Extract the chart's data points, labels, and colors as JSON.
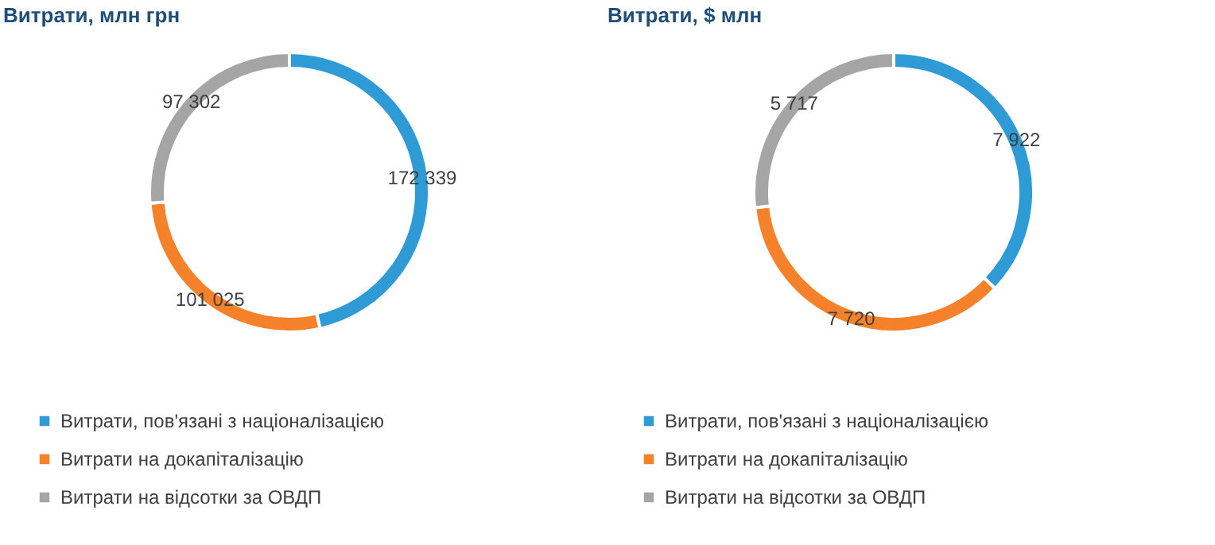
{
  "chart_data": [
    {
      "type": "donut",
      "title": "Витрати, млн грн",
      "categories": [
        "Витрати, пов'язані з націоналізацією",
        "Витрати на докапіталізацію",
        "Витрати на відсотки за ОВДП"
      ],
      "values": [
        172339,
        101025,
        97302
      ],
      "colors": [
        "#2e9bd6",
        "#f5822a",
        "#a5a5a5"
      ],
      "value_labels": [
        "172 339",
        "101 025",
        "97 302"
      ],
      "legend": "bottom"
    },
    {
      "type": "donut",
      "title": "Витрати, $ млн",
      "categories": [
        "Витрати, пов'язані з націоналізацією",
        "Витрати на докапіталізацію",
        "Витрати на відсотки за ОВДП"
      ],
      "values": [
        7922,
        7720,
        5717
      ],
      "colors": [
        "#2e9bd6",
        "#f5822a",
        "#a5a5a5"
      ],
      "value_labels": [
        "7 922",
        "7 720",
        "5 717"
      ],
      "legend": "bottom"
    }
  ]
}
